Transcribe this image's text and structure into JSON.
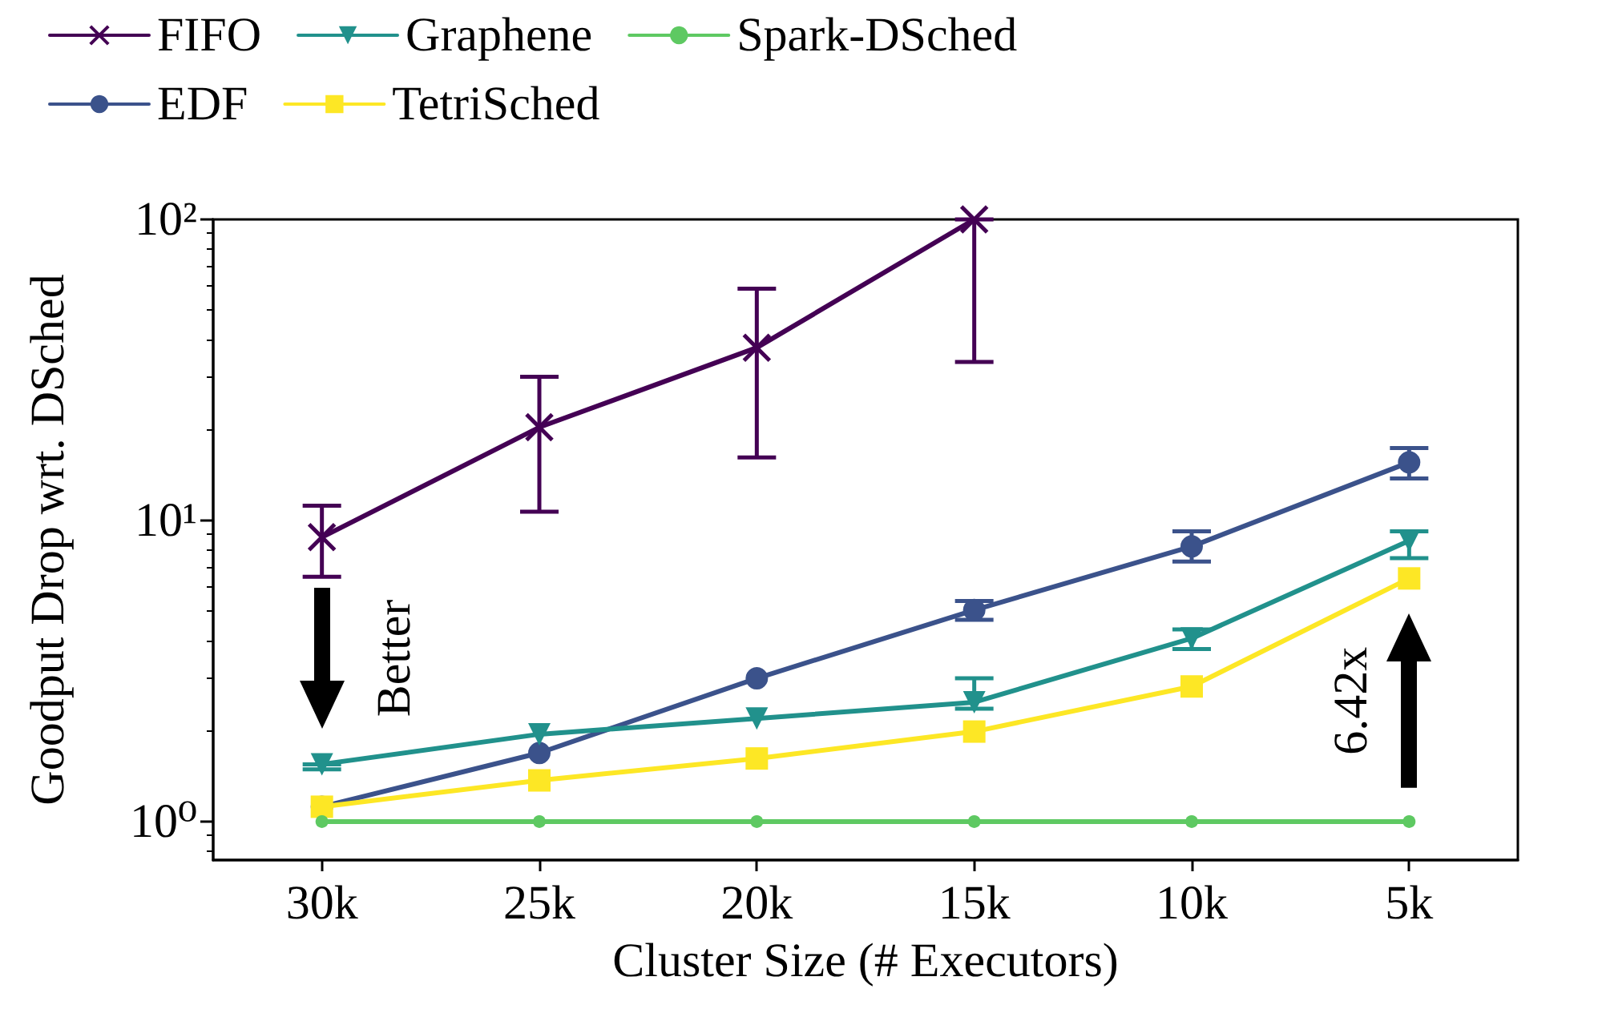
{
  "chart_data": {
    "type": "line",
    "xlabel": "Cluster Size (# Executors)",
    "ylabel": "Goodput Drop wrt. DSched",
    "categories": [
      "30k",
      "25k",
      "20k",
      "15k",
      "10k",
      "5k"
    ],
    "series": [
      {
        "name": "FIFO",
        "color": "#440154",
        "marker": "cross",
        "values": [
          8.8,
          20.4,
          37.5,
          100,
          null,
          null
        ],
        "errors": [
          [
            6.5,
            11.2
          ],
          [
            10.7,
            30
          ],
          [
            16.2,
            58.9
          ],
          [
            33.6,
            100
          ],
          null,
          null
        ]
      },
      {
        "name": "EDF",
        "color": "#3b528b",
        "marker": "circle",
        "values": [
          1.12,
          1.69,
          2.99,
          5.04,
          8.2,
          15.6
        ],
        "errors": [
          null,
          null,
          null,
          [
            4.68,
            5.4
          ],
          [
            7.3,
            9.2
          ],
          [
            13.8,
            17.4
          ]
        ]
      },
      {
        "name": "Graphene",
        "color": "#21918c",
        "marker": "triangle",
        "values": [
          1.55,
          1.95,
          2.2,
          2.49,
          4.06,
          8.57
        ],
        "errors": [
          [
            1.49,
            1.55
          ],
          null,
          null,
          [
            2.37,
            2.99
          ],
          [
            3.74,
            4.35
          ],
          [
            7.5,
            9.2
          ]
        ]
      },
      {
        "name": "TetriSched",
        "color": "#fde725",
        "marker": "square",
        "values": [
          1.12,
          1.37,
          1.62,
          1.99,
          2.81,
          6.42
        ]
      },
      {
        "name": "Spark-DSched",
        "color": "#5ec962",
        "marker": "circle",
        "values": [
          1,
          1,
          1,
          1,
          1,
          1
        ]
      }
    ],
    "ylim": [
      0.745,
      100
    ],
    "log": "y",
    "yticks": [
      {
        "value": 1,
        "label": "10⁰"
      },
      {
        "value": 10,
        "label": "10¹"
      },
      {
        "value": 100,
        "label": "10²"
      }
    ],
    "legend": "top",
    "line_style": "solid",
    "annotations": [
      "Better",
      {
        "text": "6.42x",
        "x": "5k",
        "y": 6.42
      }
    ]
  }
}
